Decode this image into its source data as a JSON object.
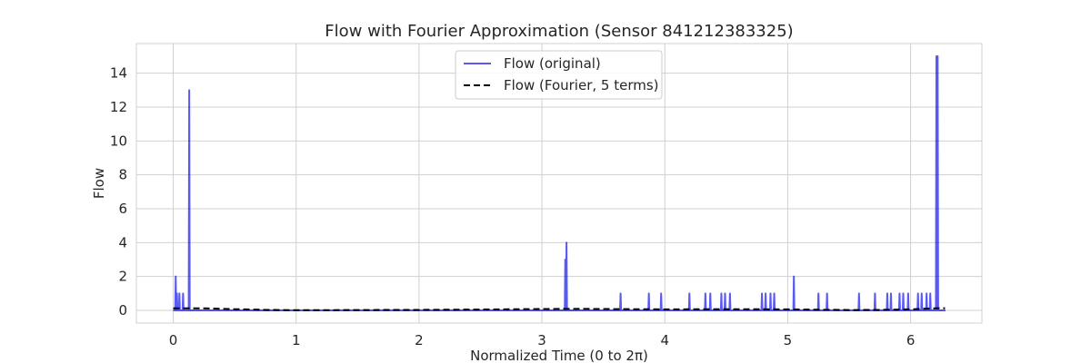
{
  "chart_data": {
    "type": "line",
    "title": "Flow with Fourier Approximation (Sensor 841212383325)",
    "xlabel": "Normalized Time (0 to 2π)",
    "ylabel": "Flow",
    "xlim": [
      -0.3,
      6.58
    ],
    "ylim": [
      -0.75,
      15.75
    ],
    "xticks": [
      0,
      1,
      2,
      3,
      4,
      5,
      6
    ],
    "yticks": [
      0,
      2,
      4,
      6,
      8,
      10,
      12,
      14
    ],
    "grid": true,
    "legend": {
      "position": "upper center"
    },
    "series": [
      {
        "name": "Flow (original)",
        "color": "#0000ee",
        "style": "solid",
        "baseline": [
          0,
          6.2832
        ],
        "spikes": [
          [
            0.02,
            2
          ],
          [
            0.03,
            1
          ],
          [
            0.05,
            1
          ],
          [
            0.08,
            1
          ],
          [
            0.13,
            13
          ],
          [
            3.19,
            3
          ],
          [
            3.2,
            4
          ],
          [
            3.64,
            1
          ],
          [
            3.87,
            1
          ],
          [
            3.97,
            1
          ],
          [
            4.2,
            1
          ],
          [
            4.33,
            1
          ],
          [
            4.37,
            1
          ],
          [
            4.46,
            1
          ],
          [
            4.49,
            1
          ],
          [
            4.53,
            1
          ],
          [
            4.79,
            1
          ],
          [
            4.82,
            1
          ],
          [
            4.86,
            1
          ],
          [
            4.89,
            1
          ],
          [
            5.05,
            2
          ],
          [
            5.25,
            1
          ],
          [
            5.32,
            1
          ],
          [
            5.58,
            1
          ],
          [
            5.71,
            1
          ],
          [
            5.81,
            1
          ],
          [
            5.84,
            1
          ],
          [
            5.91,
            1
          ],
          [
            5.94,
            1
          ],
          [
            5.98,
            1
          ],
          [
            6.06,
            1
          ],
          [
            6.09,
            1
          ],
          [
            6.13,
            1
          ],
          [
            6.16,
            1
          ],
          [
            6.21,
            15
          ],
          [
            6.22,
            15
          ],
          [
            6.27,
            0
          ]
        ]
      },
      {
        "name": "Flow (Fourier, 5 terms)",
        "color": "#000000",
        "style": "dashed",
        "x": [
          0.0,
          0.25,
          0.5,
          0.75,
          1.0,
          1.5,
          2.0,
          2.5,
          3.0,
          3.25,
          3.5,
          4.0,
          4.5,
          5.0,
          5.5,
          5.75,
          6.0,
          6.1,
          6.2,
          6.28
        ],
        "y": [
          0.12,
          0.12,
          0.07,
          0.03,
          0.01,
          0.02,
          0.03,
          0.05,
          0.08,
          0.09,
          0.08,
          0.06,
          0.07,
          0.06,
          0.02,
          0.03,
          0.06,
          0.09,
          0.12,
          0.13
        ]
      }
    ]
  }
}
